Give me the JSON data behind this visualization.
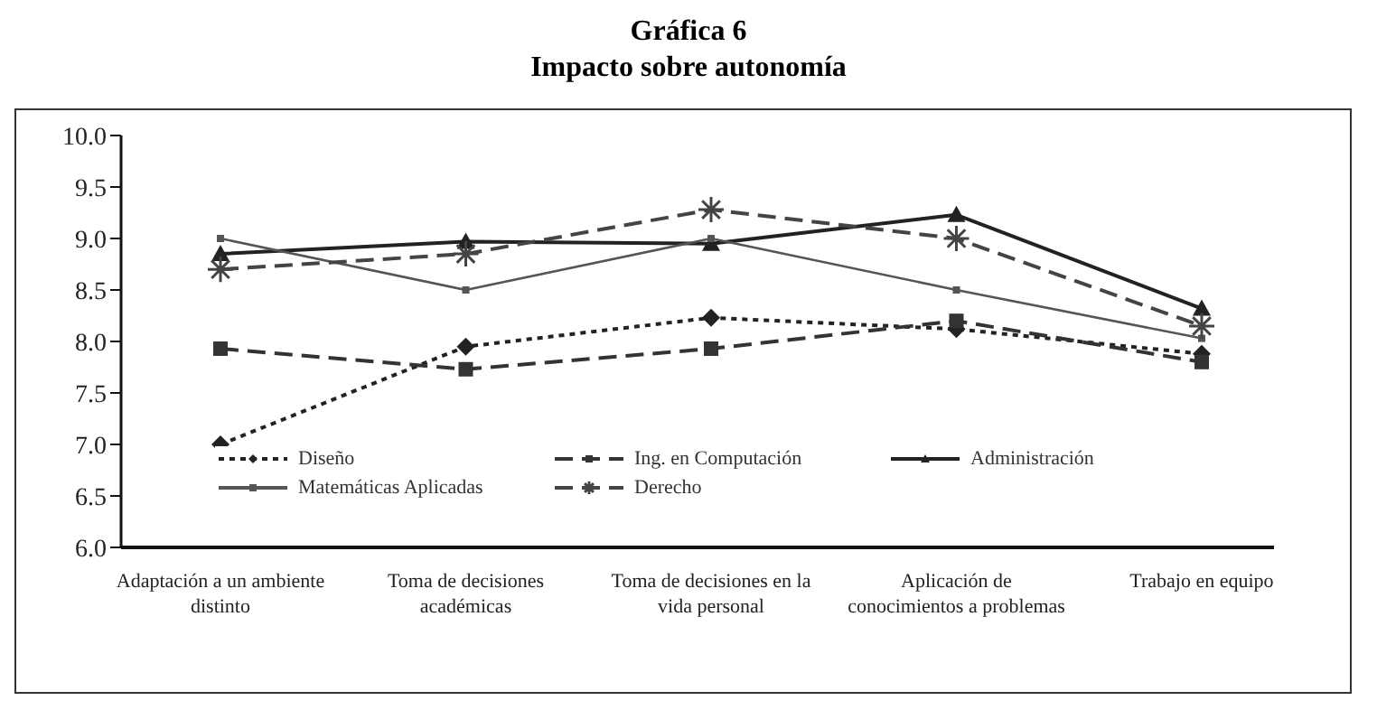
{
  "chart_data": {
    "type": "line",
    "title": "Gráfica 6",
    "subtitle": "Impacto sobre autonomía",
    "categories": [
      "Adaptación a un ambiente distinto",
      "Toma de decisiones académicas",
      "Toma de decisiones en la vida personal",
      "Aplicación de conocimientos a problemas",
      "Trabajo en equipo"
    ],
    "series": [
      {
        "name": "Diseño",
        "color": "#222222",
        "values": [
          7.0,
          7.95,
          8.23,
          8.12,
          7.88
        ],
        "marker": "diamond",
        "line_style": "dotted"
      },
      {
        "name": "Ing. en Computación",
        "color": "#333333",
        "values": [
          7.93,
          7.73,
          7.93,
          8.2,
          7.8
        ],
        "marker": "square",
        "line_style": "dashed"
      },
      {
        "name": "Administración",
        "color": "#222222",
        "values": [
          8.85,
          8.97,
          8.95,
          9.23,
          8.32
        ],
        "marker": "triangle",
        "line_style": "solid"
      },
      {
        "name": "Matemáticas Aplicadas",
        "color": "#555555",
        "values": [
          9.0,
          8.5,
          9.0,
          8.5,
          8.03
        ],
        "marker": "square",
        "line_style": "solid"
      },
      {
        "name": "Derecho",
        "color": "#444444",
        "values": [
          8.7,
          8.85,
          9.28,
          9.0,
          8.15
        ],
        "marker": "cross",
        "line_style": "dashed"
      }
    ],
    "ylim": [
      6.0,
      10.0
    ],
    "yticks": [
      {
        "value": 6,
        "label": "6.0"
      },
      {
        "value": 6.5,
        "label": "6.5"
      },
      {
        "value": 7,
        "label": "7.0"
      },
      {
        "value": 7.5,
        "label": "7.5"
      },
      {
        "value": 8,
        "label": "8.0"
      },
      {
        "value": 8.5,
        "label": "8.5"
      },
      {
        "value": 9,
        "label": "9.0"
      },
      {
        "value": 9.5,
        "label": "9.5"
      },
      {
        "value": 10,
        "label": "10.0"
      }
    ],
    "grid": false,
    "legend": "bottom"
  }
}
